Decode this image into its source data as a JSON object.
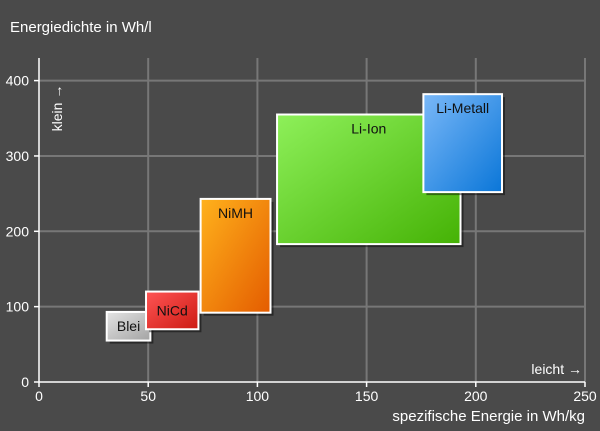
{
  "chart_data": {
    "type": "range-rectangles",
    "title": "Energiedichte in Wh/l",
    "xlabel": "spezifische Energie in Wh/kg",
    "ylabel": "Energiedichte in Wh/l",
    "x_direction_label": "leicht →",
    "y_direction_label": "klein →",
    "xlim": [
      0,
      250
    ],
    "ylim": [
      0,
      430
    ],
    "x_ticks": [
      0,
      50,
      100,
      150,
      200,
      250
    ],
    "y_ticks": [
      0,
      100,
      200,
      300,
      400
    ],
    "grid": true,
    "colors": {
      "background": "#4a4a4a",
      "grid": "#777777",
      "axis": "#ffffff",
      "text": "#ffffff"
    },
    "series": [
      {
        "name": "Blei",
        "x": [
          31,
          51
        ],
        "y": [
          55,
          93
        ],
        "color_top": "#e4e4e4",
        "color_bottom": "#a3a3a3"
      },
      {
        "name": "NiCd",
        "x": [
          49,
          73
        ],
        "y": [
          70,
          120
        ],
        "color_top": "#ff5555",
        "color_bottom": "#cc1a12"
      },
      {
        "name": "NiMH",
        "x": [
          74,
          106
        ],
        "y": [
          92,
          243
        ],
        "color_top": "#ffb21c",
        "color_bottom": "#e45c00"
      },
      {
        "name": "Li-Ion",
        "x": [
          109,
          193
        ],
        "y": [
          183,
          355
        ],
        "color_top": "#8ef05a",
        "color_bottom": "#45b205"
      },
      {
        "name": "Li-Metall",
        "x": [
          176,
          212
        ],
        "y": [
          252,
          382
        ],
        "color_top": "#7ab8f8",
        "color_bottom": "#0a76d8"
      }
    ]
  }
}
